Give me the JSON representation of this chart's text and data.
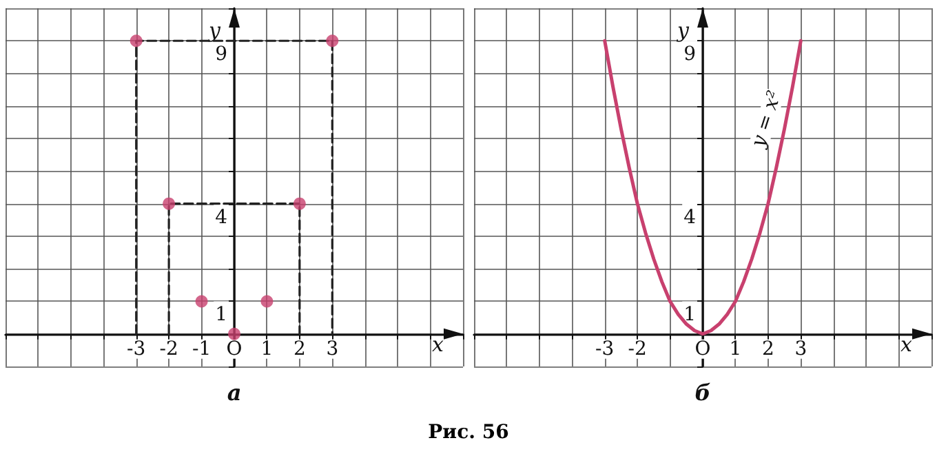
{
  "chart_data": [
    {
      "type": "scatter",
      "title": "а",
      "xlabel": "x",
      "ylabel": "y",
      "xlim": [
        -7,
        7
      ],
      "ylim": [
        -1,
        10
      ],
      "grid": true,
      "xticks": [
        {
          "value": -7,
          "label": null
        },
        {
          "value": -6,
          "label": null
        },
        {
          "value": -5,
          "label": null
        },
        {
          "value": -4,
          "label": null
        },
        -3,
        -2,
        -1,
        {
          "value": 0,
          "label": "O"
        },
        1,
        2,
        3,
        {
          "value": 4,
          "label": null
        },
        {
          "value": 5,
          "label": null
        },
        {
          "value": 6,
          "label": null
        },
        {
          "value": 7,
          "label": null
        }
      ],
      "yticks": [
        {
          "value": -1,
          "label": null
        },
        {
          "value": 0,
          "label": null
        },
        1,
        {
          "value": 2,
          "label": null
        },
        {
          "value": 3,
          "label": null
        },
        4,
        {
          "value": 5,
          "label": null
        },
        {
          "value": 6,
          "label": null
        },
        {
          "value": 7,
          "label": null
        },
        {
          "value": 8,
          "label": null
        },
        9,
        {
          "value": 10,
          "label": null
        }
      ],
      "series": [
        {
          "type": "line",
          "color": "#222222",
          "marker": "none",
          "line_style": "dashed",
          "x": [
            -3,
            -3,
            3,
            3
          ],
          "values": [
            0,
            9,
            9,
            0
          ]
        },
        {
          "type": "line",
          "color": "#222222",
          "marker": "none",
          "line_style": "dashed",
          "x": [
            -2,
            -2,
            2,
            2
          ],
          "values": [
            0,
            4,
            4,
            0
          ]
        },
        {
          "color": "#c8406e",
          "marker": "circle",
          "x": [
            -3,
            -2,
            -1,
            0,
            1,
            2,
            3
          ],
          "values": [
            9,
            4,
            1,
            0,
            1,
            4,
            9
          ]
        }
      ]
    },
    {
      "type": "line",
      "title": "б",
      "xlabel": "x",
      "ylabel": "y",
      "xlim": [
        -7,
        7
      ],
      "ylim": [
        -1,
        10
      ],
      "grid": true,
      "marker": "none",
      "line_style": "solid",
      "xticks": [
        {
          "value": -7,
          "label": null
        },
        {
          "value": -6,
          "label": null
        },
        {
          "value": -5,
          "label": null
        },
        {
          "value": -4,
          "label": null
        },
        -3,
        -2,
        {
          "value": -1,
          "label": null
        },
        {
          "value": 0,
          "label": "O"
        },
        1,
        2,
        3,
        {
          "value": 4,
          "label": null
        },
        {
          "value": 5,
          "label": null
        },
        {
          "value": 6,
          "label": null
        },
        {
          "value": 7,
          "label": null
        }
      ],
      "yticks": [
        {
          "value": -1,
          "label": null
        },
        {
          "value": 0,
          "label": null
        },
        1,
        {
          "value": 2,
          "label": null
        },
        {
          "value": 3,
          "label": null
        },
        4,
        {
          "value": 5,
          "label": null
        },
        {
          "value": 6,
          "label": null
        },
        {
          "value": 7,
          "label": null
        },
        {
          "value": 8,
          "label": null
        },
        9,
        {
          "value": 10,
          "label": null
        }
      ],
      "annotations": [
        {
          "text": "y = x²",
          "x": 2.3,
          "y": 6.6
        },
        "Рис. 56"
      ],
      "series": [
        {
          "color": "#c8406e",
          "x": [
            -3,
            -2.75,
            -2.5,
            -2.25,
            -2,
            -1.75,
            -1.5,
            -1.25,
            -1,
            -0.75,
            -0.5,
            -0.25,
            0,
            0.25,
            0.5,
            0.75,
            1,
            1.25,
            1.5,
            1.75,
            2,
            2.25,
            2.5,
            2.75,
            3
          ],
          "values": [
            9,
            7.6,
            6.3,
            5.1,
            4,
            3.1,
            2.3,
            1.6,
            1,
            0.6,
            0.3,
            0.1,
            0,
            0.1,
            0.3,
            0.6,
            1,
            1.6,
            2.3,
            3.1,
            4,
            5.1,
            6.3,
            7.6,
            9
          ]
        }
      ]
    }
  ]
}
